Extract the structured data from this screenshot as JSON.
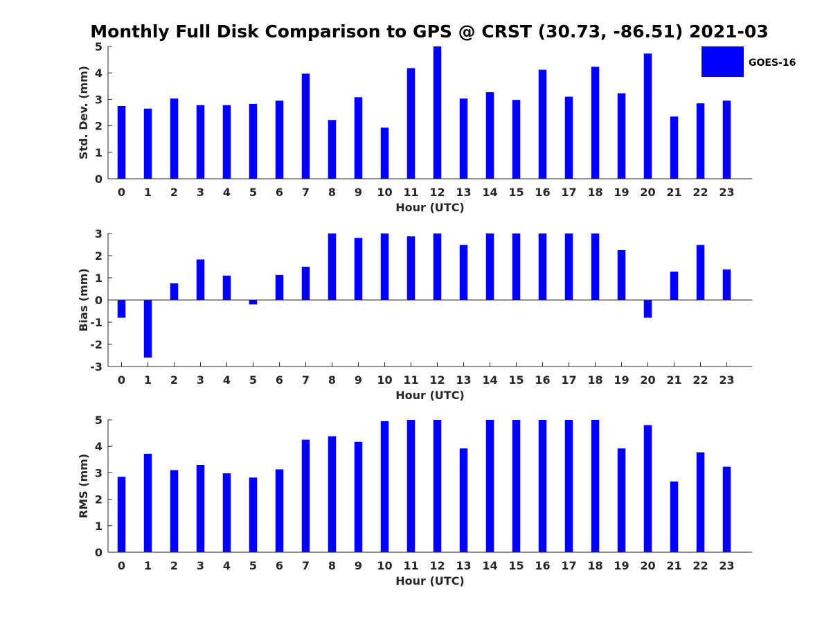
{
  "page": {
    "title": "Monthly Full Disk Comparison to GPS @ CRST (30.73, -86.51) 2021-03"
  },
  "legend": {
    "label": "GOES-16",
    "color": "#0000ff"
  },
  "chart_data": [
    {
      "type": "bar",
      "series_name": "GOES-16",
      "color": "#0000ff",
      "xlabel": "Hour (UTC)",
      "ylabel": "Std. Dev. (mm)",
      "ylim": [
        0,
        5
      ],
      "yticks": [
        0,
        1,
        2,
        3,
        4,
        5
      ],
      "categories": [
        "0",
        "1",
        "2",
        "3",
        "4",
        "5",
        "6",
        "7",
        "8",
        "9",
        "10",
        "11",
        "12",
        "13",
        "14",
        "15",
        "16",
        "17",
        "18",
        "19",
        "20",
        "21",
        "22",
        "23"
      ],
      "values": [
        2.75,
        2.65,
        3.03,
        2.78,
        2.78,
        2.83,
        2.95,
        3.97,
        2.22,
        3.08,
        1.93,
        4.18,
        5.0,
        3.03,
        3.27,
        2.98,
        4.12,
        3.1,
        4.23,
        3.23,
        4.73,
        2.35,
        2.85,
        2.95
      ]
    },
    {
      "type": "bar",
      "series_name": "GOES-16",
      "color": "#0000ff",
      "xlabel": "Hour (UTC)",
      "ylabel": "Bias (mm)",
      "ylim": [
        -3,
        3
      ],
      "yticks": [
        -3,
        -2,
        -1,
        0,
        1,
        2,
        3
      ],
      "categories": [
        "0",
        "1",
        "2",
        "3",
        "4",
        "5",
        "6",
        "7",
        "8",
        "9",
        "10",
        "11",
        "12",
        "13",
        "14",
        "15",
        "16",
        "17",
        "18",
        "19",
        "20",
        "21",
        "22",
        "23"
      ],
      "values": [
        -0.8,
        -2.6,
        0.75,
        1.83,
        1.1,
        -0.2,
        1.13,
        1.5,
        3.0,
        2.8,
        3.0,
        2.87,
        3.0,
        2.48,
        3.0,
        3.0,
        3.0,
        3.0,
        3.0,
        2.25,
        -0.8,
        1.28,
        2.48,
        1.38
      ]
    },
    {
      "type": "bar",
      "series_name": "GOES-16",
      "color": "#0000ff",
      "xlabel": "Hour (UTC)",
      "ylabel": "RMS (mm)",
      "ylim": [
        0,
        5
      ],
      "yticks": [
        0,
        1,
        2,
        3,
        4,
        5
      ],
      "categories": [
        "0",
        "1",
        "2",
        "3",
        "4",
        "5",
        "6",
        "7",
        "8",
        "9",
        "10",
        "11",
        "12",
        "13",
        "14",
        "15",
        "16",
        "17",
        "18",
        "19",
        "20",
        "21",
        "22",
        "23"
      ],
      "values": [
        2.85,
        3.72,
        3.1,
        3.3,
        2.98,
        2.82,
        3.13,
        4.25,
        4.38,
        4.17,
        4.95,
        5.0,
        5.0,
        3.92,
        5.0,
        5.0,
        5.0,
        5.0,
        5.0,
        3.92,
        4.8,
        2.67,
        3.77,
        3.23
      ]
    }
  ]
}
